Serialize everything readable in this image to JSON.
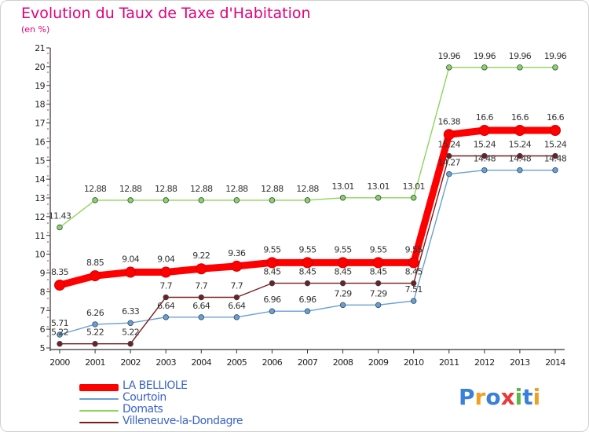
{
  "title": "Evolution du Taux de Taxe d'Habitation",
  "subtitle": "(en %)",
  "chart_data": {
    "type": "line",
    "title": "Evolution du Taux de Taxe d'Habitation",
    "subtitle": "(en %)",
    "xlabel": "",
    "ylabel": "",
    "ylim": [
      5,
      21
    ],
    "yticks": [
      "5",
      "6",
      "7",
      "8",
      "9",
      "10",
      "11",
      "12",
      "13",
      "14",
      "15",
      "16",
      "17",
      "18",
      "19",
      "20",
      "21"
    ],
    "x": [
      "2000",
      "2001",
      "2002",
      "2003",
      "2004",
      "2005",
      "2006",
      "2007",
      "2008",
      "2009",
      "2010",
      "2011",
      "2012",
      "2013",
      "2014"
    ],
    "grid": false,
    "legend_position": "bottom-left",
    "series": [
      {
        "name": "LA BELLIOLE",
        "color": "#ff0000",
        "values": [
          8.35,
          8.85,
          9.04,
          9.04,
          9.22,
          9.36,
          9.55,
          9.55,
          9.55,
          9.55,
          9.55,
          16.38,
          16.6,
          16.6,
          16.6
        ],
        "labels": [
          "8.35",
          "8.85",
          "9.04",
          "9.04",
          "9.22",
          "9.36",
          "9.55",
          "9.55",
          "9.55",
          "9.55",
          "9.55",
          "16.38",
          "16.6",
          "16.6",
          "16.6"
        ]
      },
      {
        "name": "Courtoin",
        "color": "#6a9fd4",
        "values": [
          5.71,
          6.26,
          6.33,
          6.64,
          6.64,
          6.64,
          6.96,
          6.96,
          7.29,
          7.29,
          7.51,
          14.27,
          14.48,
          14.48,
          14.48
        ],
        "labels": [
          "5.71",
          "6.26",
          "6.33",
          "6.64",
          "6.64",
          "6.64",
          "6.96",
          "6.96",
          "7.29",
          "7.29",
          "7.51",
          "14.27",
          "14.48",
          "14.48",
          "14.48"
        ]
      },
      {
        "name": "Domats",
        "color": "#8fd45a",
        "values": [
          11.43,
          12.88,
          12.88,
          12.88,
          12.88,
          12.88,
          12.88,
          12.88,
          13.01,
          13.01,
          13.01,
          19.96,
          19.96,
          19.96,
          19.96
        ],
        "labels": [
          "11.43",
          "12.88",
          "12.88",
          "12.88",
          "12.88",
          "12.88",
          "12.88",
          "12.88",
          "13.01",
          "13.01",
          "13.01",
          "19.96",
          "19.96",
          "19.96",
          "19.96"
        ]
      },
      {
        "name": "Villeneuve-la-Dondagre",
        "color": "#7a1c1c",
        "values": [
          5.22,
          5.22,
          5.22,
          7.7,
          7.7,
          7.7,
          8.45,
          8.45,
          8.45,
          8.45,
          8.45,
          15.24,
          15.24,
          15.24,
          15.24
        ],
        "labels": [
          "5.22",
          "5.22",
          "5.22",
          "7.7",
          "7.7",
          "7.7",
          "8.45",
          "8.45",
          "8.45",
          "8.45",
          "8.45",
          "15.24",
          "15.24",
          "15.24",
          "15.24"
        ]
      }
    ]
  },
  "legend": {
    "items": [
      {
        "label": "LA BELLIOLE",
        "color": "#ff0000"
      },
      {
        "label": "Courtoin",
        "color": "#6a9fd4"
      },
      {
        "label": "Domats",
        "color": "#8fd45a"
      },
      {
        "label": "Villeneuve-la-Dondagre",
        "color": "#7a1c1c"
      }
    ]
  },
  "logo": {
    "text": "Proxiti",
    "letters": [
      "P",
      "r",
      "o",
      "x",
      "i",
      "t",
      "i"
    ],
    "colors": [
      "#3a7fd8",
      "#f0a020",
      "#3a7fd8",
      "#e83a3a",
      "#58b848",
      "#3a7fd8",
      "#f0a020"
    ]
  }
}
